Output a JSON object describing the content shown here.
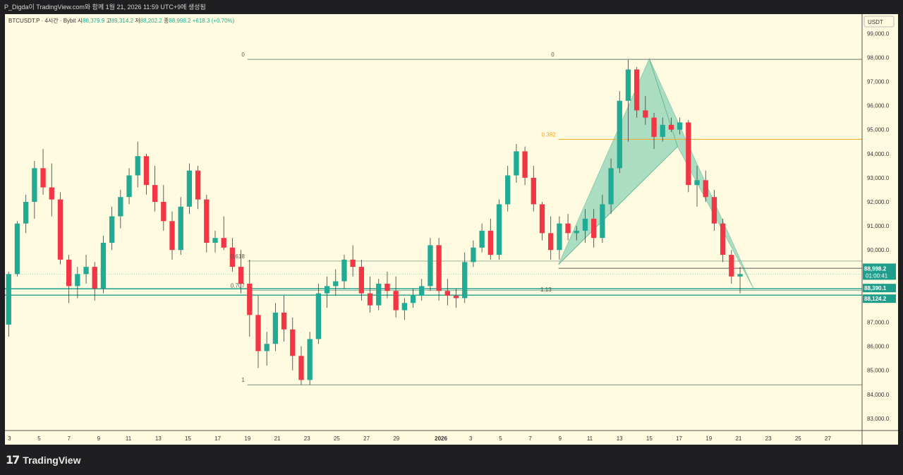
{
  "header": {
    "snapshot_credit": "P_Digda이 TradingView.com와 함께 1월 21, 2026 11:59 UTC+9에 생성됨"
  },
  "brand": {
    "logo_glyph": "17",
    "logo_text": "TradingView"
  },
  "colors": {
    "background": "#fffbe0",
    "up": "#22ab94",
    "down": "#f23645",
    "pattern_fill": "#8fd3b8",
    "fib_line": "#9db39d",
    "fib_0382": "#f5a623",
    "price_tag": "#1e9f8c"
  },
  "chart_data": {
    "type": "candlestick",
    "symbol_line": {
      "symbol": "BTCUSDT.P · 4시간 · Bybit",
      "open_label": "시",
      "open": "88,379.9",
      "high_label": "고",
      "high": "89,314.2",
      "low_label": "저",
      "low": "88,202.2",
      "close_label": "종",
      "close": "88,998.2",
      "change": "+618.3 (+0.70%)"
    },
    "currency": "USDT",
    "ylim": [
      82500,
      99800
    ],
    "y_ticks": [
      "99,000.0",
      "98,000.0",
      "97,000.0",
      "96,000.0",
      "95,000.0",
      "94,000.0",
      "93,000.0",
      "92,000.0",
      "91,000.0",
      "90,000.0",
      "87,000.0",
      "86,000.0",
      "85,000.0",
      "84,000.0",
      "83,000.0"
    ],
    "y_tick_values": [
      99000,
      98000,
      97000,
      96000,
      95000,
      94000,
      93000,
      92000,
      91000,
      90000,
      87000,
      86000,
      85000,
      84000,
      83000
    ],
    "x_ticks": [
      "3",
      "5",
      "7",
      "9",
      "11",
      "13",
      "15",
      "17",
      "19",
      "21",
      "23",
      "25",
      "27",
      "29",
      "2026",
      "3",
      "5",
      "7",
      "9",
      "11",
      "13",
      "15",
      "17",
      "19",
      "21",
      "23",
      "25",
      "27"
    ],
    "x_tick_days": [
      0,
      2,
      4,
      6,
      8,
      10,
      12,
      14,
      16,
      18,
      20,
      22,
      24,
      26,
      29,
      31,
      33,
      35,
      37,
      39,
      41,
      43,
      45,
      47,
      49,
      51,
      53,
      55
    ],
    "x_range_days": [
      -0.3,
      57.3
    ],
    "last_candle_day": 49.1,
    "price_tags": [
      {
        "label": "88,998.2",
        "value": 88998.2,
        "sub": "01:00:41"
      },
      {
        "label": "88,390.1",
        "value": 88390.1
      },
      {
        "label": "88,124.2",
        "value": 88124.2
      }
    ],
    "horizontal_lines": [
      {
        "value": 88390.1,
        "color": "#1e9f8c"
      },
      {
        "value": 88124.2,
        "color": "#1e9f8c"
      }
    ],
    "fib_left": [
      {
        "label": "0",
        "value": 97920,
        "from_day": 16.0,
        "to_day": 57.3,
        "color": "#7f8c7f"
      },
      {
        "label": "0.618",
        "value": 89540,
        "from_day": 16.0,
        "to_day": 57.3,
        "color": "#9db39d"
      },
      {
        "label": "0.707",
        "value": 88320,
        "from_day": 16.0,
        "to_day": 57.3,
        "color": "#9db39d"
      },
      {
        "label": "1",
        "value": 84400,
        "from_day": 16.0,
        "to_day": 57.3,
        "color": "#7f8c7f"
      }
    ],
    "fib_right": [
      {
        "label": "0",
        "value": 97920,
        "from_day": 36.9,
        "to_day": 57.3,
        "color": "#7f8c7f"
      },
      {
        "label": "0.382",
        "value": 94600,
        "from_day": 36.9,
        "to_day": 57.3,
        "color": "#f5a623"
      },
      {
        "label": "1.13",
        "value": 89240,
        "from_day": 36.9,
        "to_day": 57.3,
        "color": "#5a5a5a"
      }
    ],
    "harmonic_pattern": {
      "points": [
        {
          "day": 36.9,
          "value": 89400
        },
        {
          "day": 43.0,
          "value": 97950
        },
        {
          "day": 44.9,
          "value": 94300
        },
        {
          "day": 50.0,
          "value": 88400
        }
      ],
      "inner_lines": [
        [
          {
            "day": 36.9,
            "value": 89400
          },
          {
            "day": 44.9,
            "value": 94300
          }
        ],
        [
          {
            "day": 43.0,
            "value": 97950
          },
          {
            "day": 44.9,
            "value": 94300
          }
        ]
      ]
    },
    "candles": [
      [
        86900,
        89100,
        86400,
        89000
      ],
      [
        89000,
        91200,
        88900,
        91100
      ],
      [
        91100,
        92300,
        90700,
        92000
      ],
      [
        92000,
        93700,
        91300,
        93400
      ],
      [
        93400,
        94200,
        92300,
        92600
      ],
      [
        92600,
        93600,
        91400,
        92100
      ],
      [
        92100,
        92400,
        89400,
        89600
      ],
      [
        89600,
        89800,
        87800,
        88500
      ],
      [
        88500,
        89300,
        88000,
        89000
      ],
      [
        89000,
        89800,
        88600,
        89300
      ],
      [
        89300,
        89500,
        87900,
        88400
      ],
      [
        88400,
        90600,
        88200,
        90300
      ],
      [
        90300,
        91800,
        90000,
        91400
      ],
      [
        91400,
        92500,
        90900,
        92200
      ],
      [
        92200,
        93400,
        91900,
        93100
      ],
      [
        93100,
        94500,
        92600,
        93900
      ],
      [
        93900,
        94000,
        92300,
        92700
      ],
      [
        92700,
        93500,
        91600,
        92000
      ],
      [
        92000,
        92700,
        90800,
        91200
      ],
      [
        91200,
        91600,
        89600,
        90000
      ],
      [
        90000,
        92200,
        89800,
        91800
      ],
      [
        91800,
        93600,
        91500,
        93300
      ],
      [
        93300,
        93500,
        91700,
        92100
      ],
      [
        92100,
        92300,
        89900,
        90300
      ],
      [
        90300,
        90800,
        89900,
        90500
      ],
      [
        90500,
        91400,
        90000,
        90100
      ],
      [
        90100,
        90500,
        89100,
        89300
      ],
      [
        89300,
        90000,
        88200,
        88600
      ],
      [
        88600,
        89600,
        86400,
        87300
      ],
      [
        87300,
        88100,
        85100,
        85800
      ],
      [
        85800,
        86600,
        85200,
        86100
      ],
      [
        86100,
        87800,
        85800,
        87400
      ],
      [
        87400,
        88100,
        86200,
        86700
      ],
      [
        86700,
        87200,
        85000,
        85600
      ],
      [
        85600,
        86000,
        84400,
        84600
      ],
      [
        84600,
        86600,
        84400,
        86300
      ],
      [
        86300,
        88600,
        86100,
        88200
      ],
      [
        88200,
        88900,
        87600,
        88500
      ],
      [
        88500,
        89200,
        88100,
        88700
      ],
      [
        88700,
        89800,
        88400,
        89600
      ],
      [
        89600,
        90200,
        88900,
        89300
      ],
      [
        89300,
        89600,
        87900,
        88200
      ],
      [
        88200,
        88900,
        87400,
        87700
      ],
      [
        87700,
        88800,
        87500,
        88600
      ],
      [
        88600,
        89100,
        88000,
        88300
      ],
      [
        88300,
        88900,
        87200,
        87500
      ],
      [
        87500,
        88000,
        87100,
        87800
      ],
      [
        87800,
        88400,
        87600,
        88100
      ],
      [
        88100,
        88800,
        87900,
        88500
      ],
      [
        88500,
        90500,
        88300,
        90200
      ],
      [
        90200,
        90500,
        87900,
        88300
      ],
      [
        88300,
        88800,
        87700,
        88100
      ],
      [
        88100,
        88400,
        87600,
        88000
      ],
      [
        88000,
        89900,
        87800,
        89500
      ],
      [
        89500,
        90400,
        89300,
        90100
      ],
      [
        90100,
        91100,
        89900,
        90800
      ],
      [
        90800,
        91300,
        89600,
        89800
      ],
      [
        89800,
        92100,
        89600,
        91900
      ],
      [
        91900,
        93500,
        91600,
        93100
      ],
      [
        93100,
        94400,
        92800,
        94100
      ],
      [
        94100,
        94300,
        92700,
        93000
      ],
      [
        93000,
        93500,
        91600,
        91900
      ],
      [
        91900,
        92000,
        90400,
        90700
      ],
      [
        90700,
        91400,
        89600,
        90000
      ],
      [
        90000,
        91400,
        89600,
        91100
      ],
      [
        91100,
        91500,
        90400,
        90700
      ],
      [
        90700,
        91000,
        90400,
        90800
      ],
      [
        90800,
        91700,
        90300,
        91300
      ],
      [
        91300,
        91700,
        90100,
        90500
      ],
      [
        90500,
        92300,
        90300,
        91900
      ],
      [
        91900,
        93800,
        91500,
        93400
      ],
      [
        93400,
        96600,
        93200,
        96200
      ],
      [
        96200,
        97900,
        94500,
        97500
      ],
      [
        97500,
        97600,
        95500,
        95800
      ],
      [
        95800,
        96400,
        95200,
        95500
      ],
      [
        95500,
        95700,
        94200,
        94700
      ],
      [
        94700,
        95500,
        94500,
        95200
      ],
      [
        95200,
        95500,
        94900,
        95000
      ],
      [
        95000,
        95500,
        94800,
        95300
      ],
      [
        95300,
        95400,
        92400,
        92700
      ],
      [
        92700,
        93500,
        91800,
        92900
      ],
      [
        92900,
        93300,
        92000,
        92200
      ],
      [
        92200,
        92500,
        90800,
        91100
      ],
      [
        91100,
        91300,
        89500,
        89800
      ],
      [
        89800,
        90000,
        88600,
        88900
      ],
      [
        88900,
        89300,
        88200,
        88998.2
      ]
    ]
  }
}
